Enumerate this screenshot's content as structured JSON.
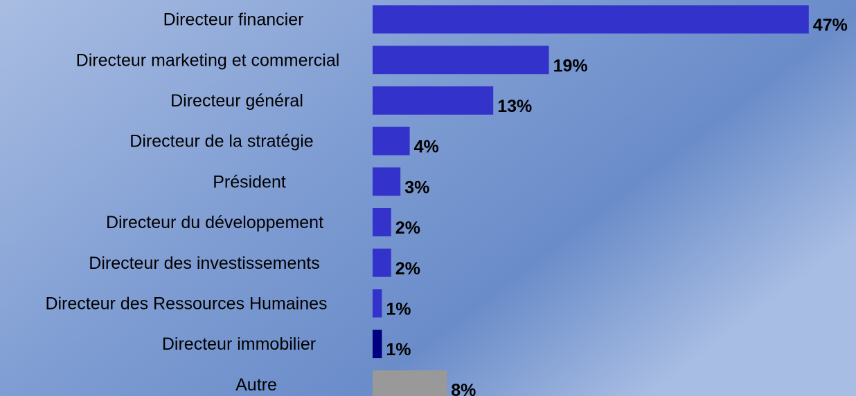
{
  "chart_data": {
    "type": "hbar",
    "categories": [
      "Directeur financier",
      "Directeur marketing et commercial",
      "Directeur général",
      "Directeur de la stratégie",
      "Président",
      "Directeur du développement",
      "Directeur des investissements",
      "Directeur des Ressources Humaines",
      "Directeur immobilier",
      "Autre"
    ],
    "values": [
      47,
      19,
      13,
      4,
      3,
      2,
      2,
      1,
      1,
      8
    ],
    "value_labels": [
      "47%",
      "19%",
      "13%",
      "4%",
      "3%",
      "2%",
      "2%",
      "1%",
      "1%",
      "8%"
    ],
    "colors": [
      "#3333cc",
      "#3333cc",
      "#3333cc",
      "#3333cc",
      "#3333cc",
      "#3333cc",
      "#3333cc",
      "#3333cc",
      "#000080",
      "#999999"
    ]
  }
}
